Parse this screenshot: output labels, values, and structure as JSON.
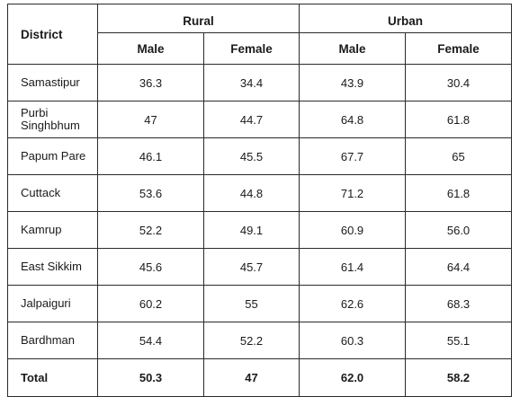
{
  "table": {
    "district_header": "District",
    "groups": {
      "rural": "Rural",
      "urban": "Urban"
    },
    "subheaders": {
      "rural_male": "Male",
      "rural_female": "Female",
      "urban_male": "Male",
      "urban_female": "Female"
    },
    "rows": [
      {
        "district": "Samastipur",
        "rural_male": "36.3",
        "rural_female": "34.4",
        "urban_male": "43.9",
        "urban_female": "30.4"
      },
      {
        "district": "Purbi Singhbhum",
        "rural_male": "47",
        "rural_female": "44.7",
        "urban_male": "64.8",
        "urban_female": "61.8"
      },
      {
        "district": "Papum Pare",
        "rural_male": "46.1",
        "rural_female": "45.5",
        "urban_male": "67.7",
        "urban_female": "65"
      },
      {
        "district": "Cuttack",
        "rural_male": "53.6",
        "rural_female": "44.8",
        "urban_male": "71.2",
        "urban_female": "61.8"
      },
      {
        "district": "Kamrup",
        "rural_male": "52.2",
        "rural_female": "49.1",
        "urban_male": "60.9",
        "urban_female": "56.0"
      },
      {
        "district": "East Sikkim",
        "rural_male": "45.6",
        "rural_female": "45.7",
        "urban_male": "61.4",
        "urban_female": "64.4"
      },
      {
        "district": "Jalpaiguri",
        "rural_male": "60.2",
        "rural_female": "55",
        "urban_male": "62.6",
        "urban_female": "68.3"
      },
      {
        "district": "Bardhman",
        "rural_male": "54.4",
        "rural_female": "52.2",
        "urban_male": "60.3",
        "urban_female": "55.1"
      }
    ],
    "total": {
      "label": "Total",
      "rural_male": "50.3",
      "rural_female": "47",
      "urban_male": "62.0",
      "urban_female": "58.2"
    }
  }
}
